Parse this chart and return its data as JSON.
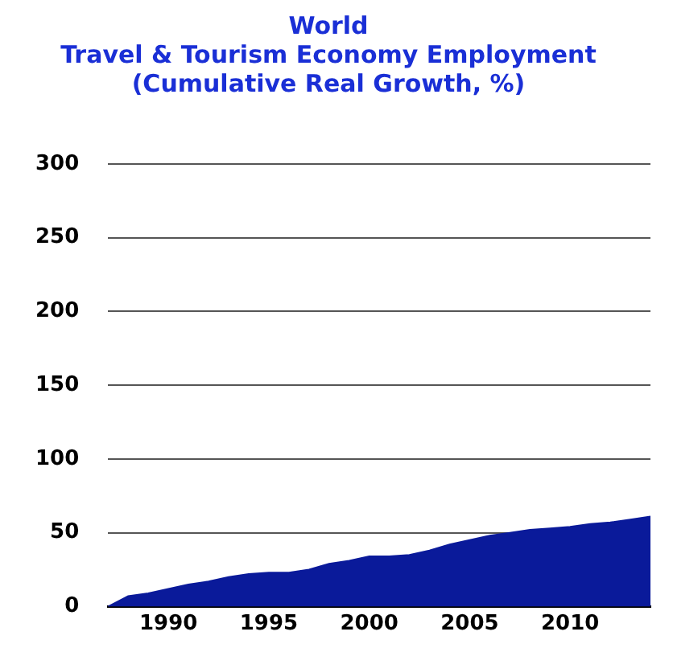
{
  "chart_data": {
    "type": "area",
    "title": "World\nTravel & Tourism Economy Employment\n(Cumulative Real Growth, %)",
    "x": [
      1987,
      1988,
      1989,
      1990,
      1991,
      1992,
      1993,
      1994,
      1995,
      1996,
      1997,
      1998,
      1999,
      2000,
      2001,
      2002,
      2003,
      2004,
      2005,
      2006,
      2007,
      2008,
      2009,
      2010,
      2011,
      2012,
      2013,
      2014
    ],
    "values": [
      0,
      7,
      9,
      12,
      15,
      17,
      20,
      22,
      23,
      23,
      25,
      29,
      31,
      34,
      34,
      35,
      38,
      42,
      45,
      48,
      50,
      52,
      53,
      54,
      56,
      57,
      59,
      61
    ],
    "color": "#0a1a9a",
    "xlim": [
      1987,
      2014
    ],
    "xticks": [
      1990,
      1995,
      2000,
      2005,
      2010
    ],
    "ylim": [
      0,
      300
    ],
    "yticks": [
      0,
      50,
      100,
      150,
      200,
      250,
      300
    ],
    "grid": "y",
    "legend": false
  }
}
